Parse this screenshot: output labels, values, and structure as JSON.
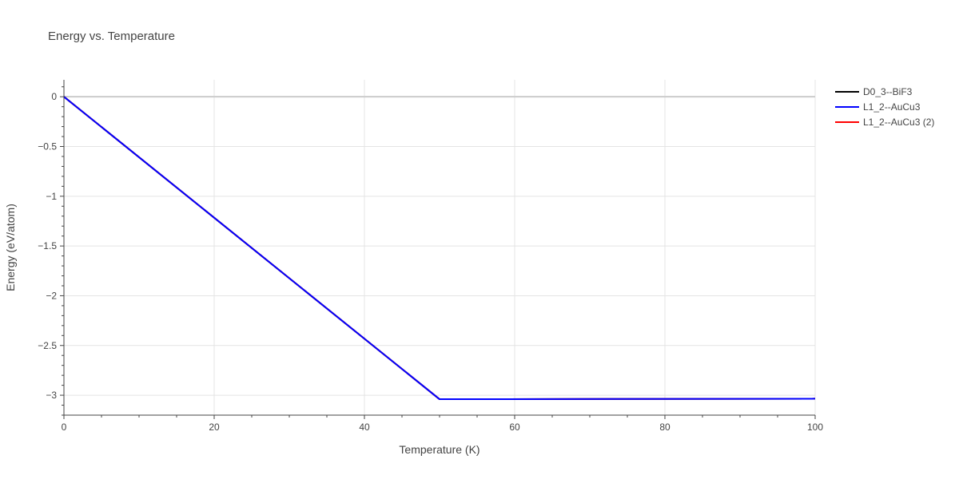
{
  "chart_data": {
    "type": "line",
    "title": "Energy vs. Temperature",
    "xlabel": "Temperature (K)",
    "ylabel": "Energy (eV/atom)",
    "xlim": [
      0,
      100
    ],
    "ylim": [
      -3.2,
      0.17
    ],
    "x_ticks": [
      0,
      20,
      40,
      60,
      80,
      100
    ],
    "x_tick_labels": [
      "0",
      "20",
      "40",
      "60",
      "80",
      "100"
    ],
    "y_ticks": [
      0,
      -0.5,
      -1,
      -1.5,
      -2,
      -2.5,
      -3
    ],
    "y_tick_labels": [
      "0",
      "−0.5",
      "−1",
      "−1.5",
      "−2",
      "−2.5",
      "−3"
    ],
    "grid": true,
    "legend_position": "top-right outside",
    "series": [
      {
        "name": "D0_3--BiF3",
        "color": "#000000",
        "x": [
          0,
          50,
          100
        ],
        "y": [
          0,
          -3.04,
          -3.035
        ]
      },
      {
        "name": "L1_2--AuCu3 (2)",
        "color": "#ff0000",
        "x": [
          0,
          50,
          100
        ],
        "y": [
          0,
          -3.04,
          -3.035
        ]
      },
      {
        "name": "L1_2--AuCu3",
        "color": "#0000ff",
        "x": [
          0,
          50,
          100
        ],
        "y": [
          0,
          -3.04,
          -3.035
        ]
      }
    ],
    "legend_order": [
      "D0_3--BiF3",
      "L1_2--AuCu3",
      "L1_2--AuCu3 (2)"
    ]
  }
}
